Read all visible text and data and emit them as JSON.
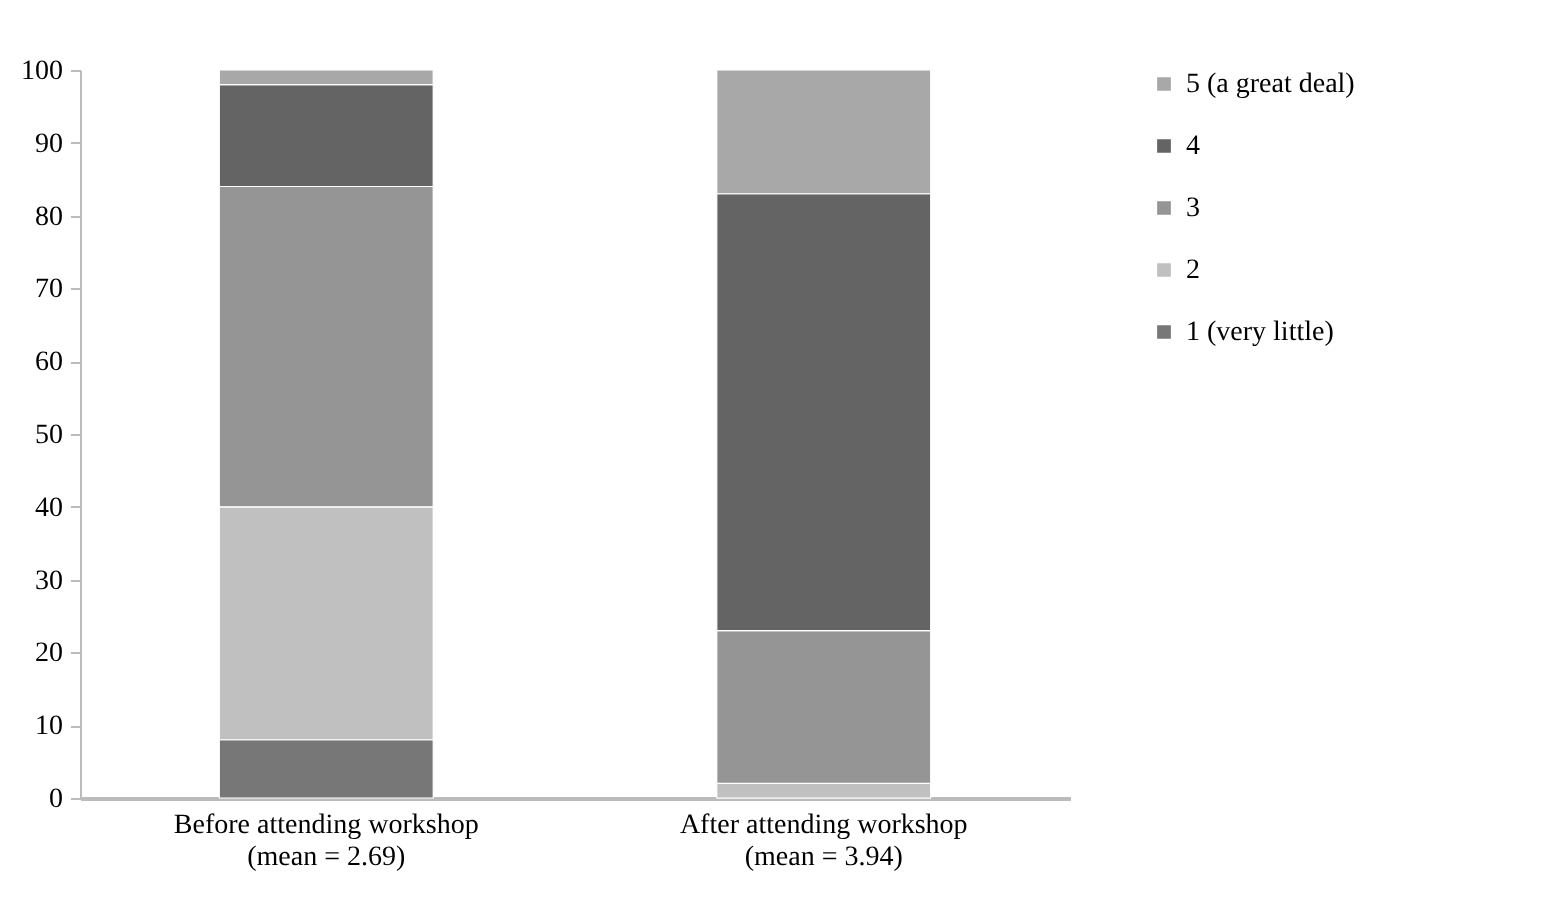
{
  "chart_data": {
    "type": "bar",
    "stacked": true,
    "categories": [
      "Before attending workshop\n(mean = 2.69)",
      "After attending workshop\n(mean = 3.94)"
    ],
    "series": [
      {
        "name": "1 (very little)",
        "color": "#777777",
        "values": [
          8,
          0
        ]
      },
      {
        "name": "2",
        "color": "#c0c0c0",
        "values": [
          32,
          2
        ]
      },
      {
        "name": "3",
        "color": "#959595",
        "values": [
          44,
          21
        ]
      },
      {
        "name": "4",
        "color": "#646464",
        "values": [
          14,
          60
        ]
      },
      {
        "name": "5 (a great deal)",
        "color": "#a8a8a8",
        "values": [
          2,
          17
        ]
      }
    ],
    "ylim": [
      0,
      100
    ],
    "yticks": [
      0,
      10,
      20,
      30,
      40,
      50,
      60,
      70,
      80,
      90,
      100
    ],
    "grid": false,
    "legend": "right"
  }
}
